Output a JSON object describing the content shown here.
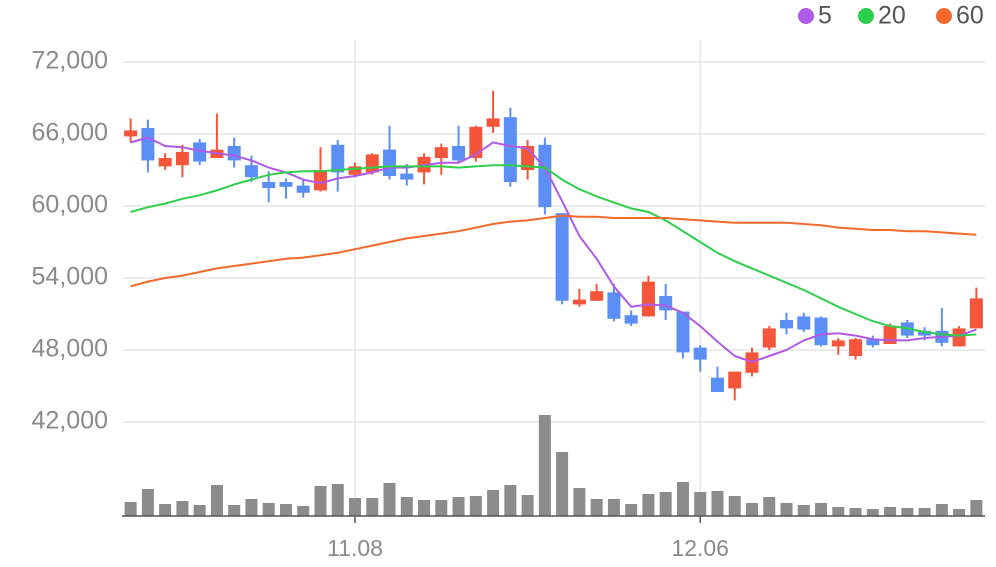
{
  "chart_data": {
    "type": "candlestick",
    "categories": [
      null,
      null,
      null,
      null,
      null,
      null,
      null,
      null,
      null,
      null,
      null,
      null,
      null,
      "11.08",
      null,
      null,
      null,
      null,
      null,
      null,
      null,
      null,
      null,
      null,
      null,
      null,
      null,
      null,
      null,
      null,
      null,
      null,
      null,
      "12.06",
      null,
      null,
      null,
      null,
      null,
      null,
      null,
      null,
      null,
      null,
      null,
      null,
      null,
      null,
      null,
      null
    ],
    "open": [
      65800,
      66500,
      63300,
      63400,
      65300,
      64000,
      65000,
      63400,
      62000,
      62000,
      61700,
      61300,
      65100,
      62600,
      62800,
      64700,
      62700,
      62800,
      64000,
      65000,
      64000,
      66600,
      67400,
      63000,
      65100,
      59400,
      51800,
      52100,
      52800,
      50900,
      50800,
      52500,
      51200,
      48200,
      45700,
      44800,
      46100,
      48200,
      50500,
      50800,
      50700,
      48300,
      47500,
      48900,
      48500,
      50300,
      49600,
      49600,
      48300,
      49800
    ],
    "high": [
      67300,
      67200,
      64400,
      65100,
      65600,
      67700,
      65700,
      64200,
      62900,
      62300,
      62200,
      64900,
      65500,
      63600,
      64400,
      66700,
      63500,
      64400,
      65200,
      66700,
      66700,
      69600,
      68200,
      65500,
      65700,
      59400,
      53100,
      53500,
      53500,
      51300,
      54200,
      53500,
      51200,
      48400,
      46600,
      46200,
      48200,
      50000,
      51100,
      51100,
      50800,
      49000,
      49000,
      49200,
      50200,
      50500,
      49900,
      51500,
      50000,
      53200
    ],
    "low": [
      65300,
      62800,
      63000,
      62400,
      63400,
      64000,
      63200,
      62000,
      60300,
      60600,
      60700,
      61200,
      61200,
      62400,
      62600,
      62200,
      61700,
      61800,
      62600,
      63600,
      63700,
      66100,
      61600,
      62200,
      59300,
      51800,
      51600,
      52100,
      50400,
      50000,
      50800,
      50500,
      47300,
      46200,
      44500,
      43800,
      45800,
      48000,
      49300,
      49500,
      48300,
      47600,
      47200,
      48200,
      48500,
      49000,
      48800,
      48300,
      48300,
      49800
    ],
    "close": [
      66300,
      63800,
      64000,
      64500,
      63700,
      64700,
      63800,
      62400,
      61500,
      61600,
      61100,
      63000,
      62800,
      63300,
      64300,
      62500,
      62200,
      64100,
      64900,
      63800,
      66600,
      67300,
      62000,
      65000,
      59900,
      52100,
      52200,
      52900,
      50600,
      50200,
      53700,
      51300,
      47800,
      47200,
      44500,
      46200,
      47800,
      49800,
      49800,
      49700,
      48400,
      48800,
      48900,
      48400,
      50000,
      49200,
      49200,
      48600,
      49800,
      52300
    ],
    "up_color": "#f5553a",
    "down_color": "#5b8ff5",
    "series": [
      {
        "name": "5",
        "color": "#b05ae8",
        "values": [
          65300,
          65700,
          65000,
          64900,
          64600,
          64400,
          64200,
          63800,
          63200,
          62800,
          62200,
          61900,
          62300,
          62500,
          62800,
          63200,
          63200,
          63400,
          63600,
          63600,
          64300,
          65300,
          65000,
          64800,
          63200,
          60400,
          57500,
          55600,
          53300,
          51600,
          51800,
          51700,
          51100,
          50000,
          48700,
          47500,
          47000,
          47500,
          48000,
          48800,
          49300,
          49400,
          49200,
          48900,
          48800,
          48800,
          49000,
          49100,
          49200,
          49700
        ]
      },
      {
        "name": "20",
        "color": "#2ecf4a",
        "values": [
          59500,
          59900,
          60200,
          60600,
          60900,
          61300,
          61800,
          62200,
          62600,
          62800,
          62900,
          62900,
          63000,
          63100,
          63200,
          63300,
          63300,
          63300,
          63300,
          63200,
          63300,
          63400,
          63400,
          63300,
          63200,
          62200,
          61400,
          60800,
          60300,
          59800,
          59500,
          58800,
          57900,
          57000,
          56100,
          55400,
          54800,
          54200,
          53600,
          53000,
          52300,
          51600,
          51000,
          50400,
          50000,
          49800,
          49500,
          49300,
          49200,
          49300
        ]
      },
      {
        "name": "60",
        "color": "#f26a2c",
        "values": [
          53300,
          53700,
          54000,
          54200,
          54500,
          54800,
          55000,
          55200,
          55400,
          55600,
          55700,
          55900,
          56100,
          56400,
          56700,
          57000,
          57300,
          57500,
          57700,
          57900,
          58200,
          58500,
          58700,
          58800,
          59000,
          59200,
          59100,
          59100,
          59000,
          59000,
          59000,
          59000,
          58900,
          58800,
          58700,
          58600,
          58600,
          58600,
          58600,
          58500,
          58400,
          58200,
          58100,
          58000,
          58000,
          57900,
          57900,
          57800,
          57700,
          57600
        ]
      }
    ],
    "volume": {
      "color": "#8c8c8c",
      "ylim": [
        0,
        100
      ],
      "values": [
        14,
        27,
        12,
        15,
        11,
        31,
        11,
        17,
        13,
        12,
        10,
        30,
        32,
        18,
        18,
        33,
        19,
        16,
        16,
        19,
        20,
        26,
        31,
        21,
        101,
        64,
        28,
        17,
        17,
        12,
        22,
        24,
        34,
        24,
        25,
        20,
        13,
        19,
        13,
        11,
        13,
        9,
        8,
        7,
        9,
        8,
        8,
        12,
        7,
        16
      ]
    },
    "ylim": [
      41000,
      74000
    ],
    "yticks": [
      {
        "value": 42000,
        "label": "42,000"
      },
      {
        "value": 48000,
        "label": "48,000"
      },
      {
        "value": 54000,
        "label": "54,000"
      },
      {
        "value": 60000,
        "label": "60,000"
      },
      {
        "value": 66000,
        "label": "66,000"
      },
      {
        "value": 72000,
        "label": "72,000"
      }
    ],
    "grid": true
  }
}
